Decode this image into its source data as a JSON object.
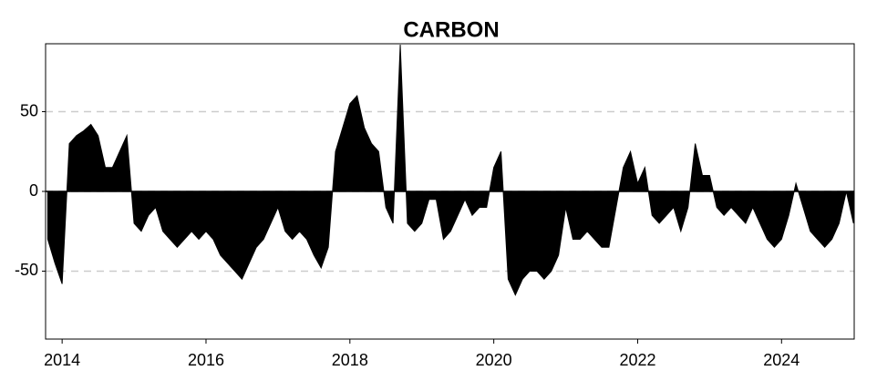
{
  "chart_data": {
    "type": "area",
    "title": "CARBON",
    "color": "#000000",
    "grid": true,
    "xlim": [
      2013.77,
      2025.01
    ],
    "xticks": [
      2014,
      2016,
      2018,
      2020,
      2022,
      2024
    ],
    "ylim": [
      -92.6,
      92.6
    ],
    "yticks": [
      -50,
      0,
      50
    ],
    "x": [
      2013.8,
      2013.9,
      2014.0,
      2014.1,
      2014.2,
      2014.3,
      2014.4,
      2014.5,
      2014.6,
      2014.7,
      2014.8,
      2014.9,
      2015.0,
      2015.1,
      2015.2,
      2015.3,
      2015.4,
      2015.5,
      2015.6,
      2015.7,
      2015.8,
      2015.9,
      2016.0,
      2016.1,
      2016.2,
      2016.3,
      2016.4,
      2016.5,
      2016.6,
      2016.7,
      2016.8,
      2016.9,
      2017.0,
      2017.1,
      2017.2,
      2017.3,
      2017.4,
      2017.5,
      2017.6,
      2017.7,
      2017.8,
      2017.9,
      2018.0,
      2018.1,
      2018.2,
      2018.3,
      2018.4,
      2018.5,
      2018.6,
      2018.7,
      2018.8,
      2018.9,
      2019.0,
      2019.1,
      2019.2,
      2019.3,
      2019.4,
      2019.5,
      2019.6,
      2019.7,
      2019.8,
      2019.9,
      2020.0,
      2020.1,
      2020.2,
      2020.3,
      2020.4,
      2020.5,
      2020.6,
      2020.7,
      2020.8,
      2020.9,
      2021.0,
      2021.1,
      2021.2,
      2021.3,
      2021.4,
      2021.5,
      2021.6,
      2021.7,
      2021.8,
      2021.9,
      2022.0,
      2022.1,
      2022.2,
      2022.3,
      2022.4,
      2022.5,
      2022.6,
      2022.7,
      2022.8,
      2022.9,
      2023.0,
      2023.1,
      2023.2,
      2023.3,
      2023.4,
      2023.5,
      2023.6,
      2023.7,
      2023.8,
      2023.9,
      2024.0,
      2024.1,
      2024.2,
      2024.3,
      2024.4,
      2024.5,
      2024.6,
      2024.7,
      2024.8,
      2024.9,
      2025.0
    ],
    "values": [
      -30,
      -45,
      -58,
      30,
      35,
      38,
      42,
      35,
      15,
      15,
      25,
      35,
      -20,
      -25,
      -15,
      -10,
      -25,
      -30,
      -35,
      -30,
      -25,
      -30,
      -25,
      -30,
      -40,
      -45,
      -50,
      -55,
      -45,
      -35,
      -30,
      -20,
      -10,
      -25,
      -30,
      -25,
      -30,
      -40,
      -48,
      -35,
      25,
      40,
      55,
      60,
      40,
      30,
      25,
      -10,
      -20,
      92,
      -20,
      -25,
      -20,
      -5,
      -5,
      -30,
      -25,
      -15,
      -5,
      -15,
      -10,
      -10,
      15,
      25,
      -55,
      -65,
      -55,
      -50,
      -50,
      -55,
      -50,
      -40,
      -10,
      -30,
      -30,
      -25,
      -30,
      -35,
      -35,
      -10,
      15,
      25,
      5,
      15,
      -15,
      -20,
      -15,
      -10,
      -25,
      -10,
      30,
      10,
      10,
      -10,
      -15,
      -10,
      -15,
      -20,
      -10,
      -20,
      -30,
      -35,
      -30,
      -15,
      5,
      -10,
      -25,
      -30,
      -35,
      -30,
      -20,
      0,
      -20
    ]
  }
}
